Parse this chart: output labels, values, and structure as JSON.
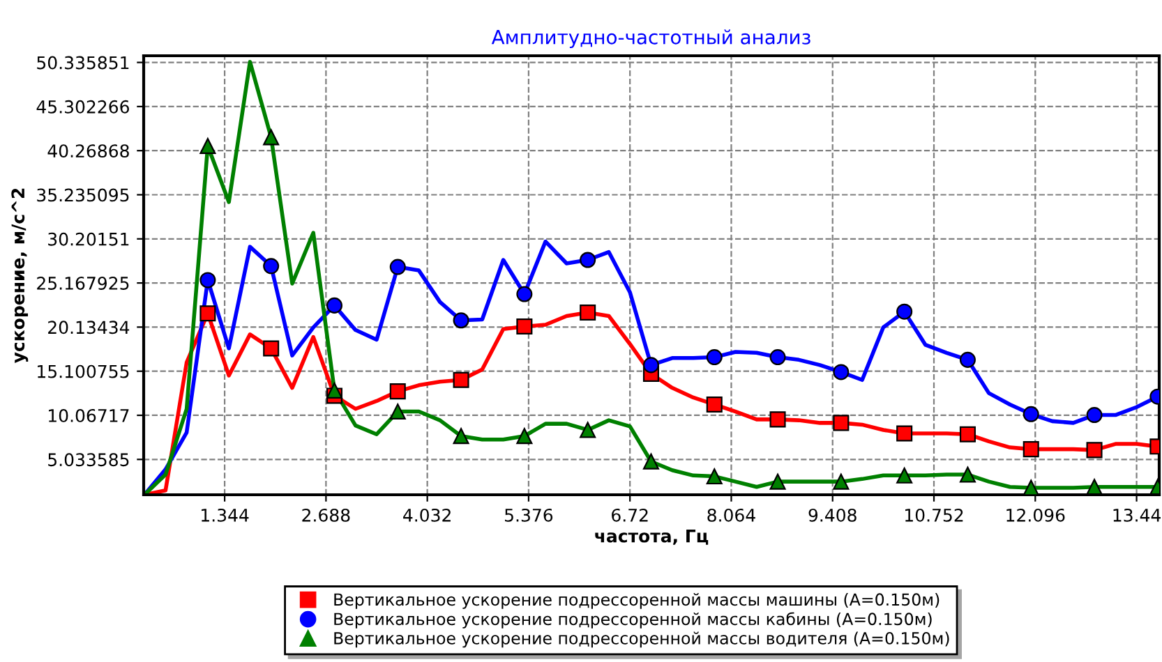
{
  "chart_data": {
    "type": "line",
    "title": "Амплитудно-частотный анализ",
    "xlabel": "частота, Гц",
    "ylabel": "ускорение, м/с^2",
    "xlim": [
      0.27,
      13.74
    ],
    "ylim": [
      1,
      51.1
    ],
    "xticks": [
      1.344,
      2.688,
      4.032,
      5.376,
      6.72,
      8.064,
      9.408,
      10.752,
      12.096,
      13.44
    ],
    "yticks": [
      5.033585,
      10.06717,
      15.100755,
      20.13434,
      25.167925,
      30.20151,
      35.235095,
      40.26868,
      45.302266,
      50.335851
    ],
    "grid": true,
    "legend": "bottom",
    "x": [
      0.28,
      0.56,
      0.84,
      1.12,
      1.4,
      1.68,
      1.96,
      2.24,
      2.52,
      2.8,
      3.08,
      3.36,
      3.64,
      3.92,
      4.2,
      4.48,
      4.76,
      5.04,
      5.32,
      5.6,
      5.88,
      6.16,
      6.44,
      6.72,
      7.0,
      7.28,
      7.56,
      7.84,
      8.12,
      8.4,
      8.68,
      8.96,
      9.24,
      9.52,
      9.8,
      10.08,
      10.36,
      10.64,
      10.92,
      11.2,
      11.48,
      11.76,
      12.04,
      12.32,
      12.6,
      12.88,
      13.16,
      13.44,
      13.72
    ],
    "series": [
      {
        "color": "#ff0000",
        "marker": "none",
        "values": [
          1,
          1.5,
          16.1,
          21.7,
          14.6,
          19.3,
          17.7,
          13.2,
          19.0,
          12.3,
          10.8,
          11.7,
          12.8,
          13.5,
          13.9,
          14.1,
          15.3,
          19.9,
          20.2,
          20.4,
          21.4,
          21.8,
          21.4,
          18.2,
          14.8,
          13.2,
          12.1,
          11.3,
          10.5,
          9.6,
          9.6,
          9.5,
          9.2,
          9.2,
          9.0,
          8.4,
          8.0,
          8.0,
          8.0,
          7.9,
          7.1,
          6.4,
          6.2,
          6.2,
          6.2,
          6.1,
          6.8,
          6.8,
          6.5
        ]
      },
      {
        "color": "#0000ff",
        "marker": "none",
        "values": [
          1,
          3.9,
          8.1,
          25.5,
          17.7,
          29.3,
          27.1,
          16.9,
          20.1,
          22.6,
          19.8,
          18.7,
          27.0,
          26.6,
          23.0,
          20.9,
          21.0,
          27.8,
          23.9,
          29.9,
          27.4,
          27.8,
          28.7,
          24.1,
          15.8,
          16.6,
          16.6,
          16.7,
          17.3,
          17.2,
          16.7,
          16.4,
          15.8,
          15.0,
          14.1,
          20.1,
          21.9,
          18.1,
          17.2,
          16.4,
          12.6,
          11.3,
          10.2,
          9.4,
          9.2,
          10.1,
          10.1,
          11.0,
          12.2
        ]
      },
      {
        "color": "#008000",
        "marker": "none",
        "values": [
          1,
          3.3,
          10.8,
          40.8,
          34.4,
          50.4,
          41.8,
          25.1,
          30.9,
          12.9,
          8.9,
          7.9,
          10.5,
          10.5,
          9.5,
          7.7,
          7.3,
          7.3,
          7.7,
          9.1,
          9.1,
          8.4,
          9.5,
          8.8,
          4.8,
          3.8,
          3.2,
          3.1,
          2.5,
          1.9,
          2.5,
          2.5,
          2.5,
          2.5,
          2.8,
          3.2,
          3.2,
          3.2,
          3.3,
          3.3,
          2.5,
          1.9,
          1.8,
          1.8,
          1.8,
          1.9,
          1.9,
          1.9,
          1.9
        ]
      },
      {
        "type": "scatter",
        "name": "Вертикальное ускорение подрессоренной массы машины (A=0.150м)",
        "color": "#ff0000",
        "marker": "square",
        "x": [
          1.12,
          1.96,
          2.8,
          3.64,
          4.48,
          5.32,
          6.16,
          7.0,
          7.84,
          8.68,
          9.52,
          10.36,
          11.2,
          12.04,
          12.88,
          13.72
        ],
        "values": [
          21.7,
          17.7,
          12.3,
          12.8,
          14.1,
          20.2,
          21.8,
          14.8,
          11.3,
          9.6,
          9.2,
          8.0,
          7.9,
          6.2,
          6.1,
          6.5
        ]
      },
      {
        "type": "scatter",
        "name": "Вертикальное ускорение подрессоренной массы кабины (A=0.150м)",
        "color": "#0000ff",
        "marker": "circle",
        "x": [
          1.12,
          1.96,
          2.8,
          3.64,
          4.48,
          5.32,
          6.16,
          7.0,
          7.84,
          8.68,
          9.52,
          10.36,
          11.2,
          12.04,
          12.88,
          13.72
        ],
        "values": [
          25.5,
          27.1,
          22.6,
          27.0,
          20.9,
          23.9,
          27.8,
          15.8,
          16.7,
          16.7,
          15.0,
          21.9,
          16.4,
          10.2,
          10.1,
          12.2
        ]
      },
      {
        "type": "scatter",
        "name": "Вертикальное ускорение подрессоренной массы водителя (A=0.150м)",
        "color": "#008000",
        "marker": "triangle",
        "x": [
          1.12,
          1.96,
          2.8,
          3.64,
          4.48,
          5.32,
          6.16,
          7.0,
          7.84,
          8.68,
          9.52,
          10.36,
          11.2,
          12.04,
          12.88,
          13.72
        ],
        "values": [
          40.8,
          41.8,
          12.9,
          10.5,
          7.7,
          7.7,
          8.4,
          4.8,
          3.1,
          2.5,
          2.5,
          3.2,
          3.3,
          1.8,
          1.9,
          1.9
        ]
      }
    ]
  }
}
